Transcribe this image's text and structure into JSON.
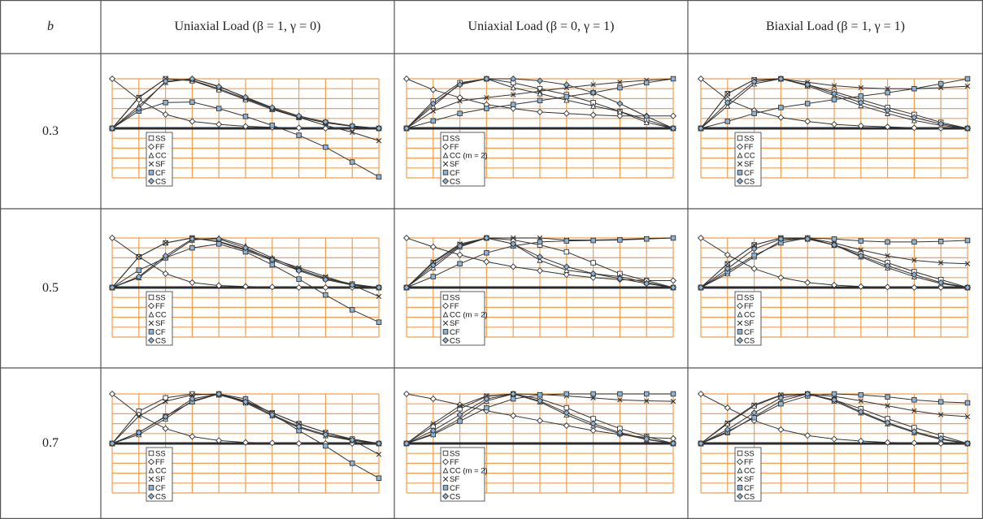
{
  "header": {
    "param_label": "b",
    "columns": [
      "Uniaxial Load (β = 1, γ = 0)",
      "Uniaxial Load (β = 0, γ = 1)",
      "Biaxial Load (β = 1, γ = 1)"
    ]
  },
  "rows": [
    {
      "label": "0.3"
    },
    {
      "label": "0.5"
    },
    {
      "label": "0.7"
    }
  ],
  "colors": {
    "grid": "#f0a050",
    "axis": "#2b2b2b",
    "line": "#333333",
    "marker_fill_dark": "#8fb4d3",
    "marker_fill_light": "#ffffff",
    "border": "#555555"
  },
  "chart_data": [
    {
      "type": "line",
      "row": "0.3",
      "column": "Uniaxial Load (β = 1, γ = 0)",
      "x": [
        0,
        1,
        2,
        3,
        4,
        5,
        6,
        7,
        8,
        9,
        10
      ],
      "ylim": [
        -1,
        1
      ],
      "legend": [
        "SS",
        "FF",
        "CC",
        "SF",
        "CF",
        "CS"
      ],
      "series": [
        {
          "name": "SS",
          "values": [
            0,
            0.62,
            1.0,
            0.96,
            0.78,
            0.58,
            0.38,
            0.22,
            0.12,
            0.04,
            0
          ]
        },
        {
          "name": "FF",
          "values": [
            1.0,
            0.58,
            0.28,
            0.14,
            0.08,
            0.04,
            0.02,
            0.01,
            0.0,
            0.0,
            0.0
          ]
        },
        {
          "name": "CC",
          "values": [
            0,
            0.45,
            0.93,
            1.0,
            0.85,
            0.62,
            0.4,
            0.23,
            0.11,
            0.04,
            0
          ]
        },
        {
          "name": "SF",
          "values": [
            0,
            0.63,
            1.0,
            0.97,
            0.8,
            0.6,
            0.4,
            0.22,
            0.06,
            -0.08,
            -0.25
          ]
        },
        {
          "name": "CF",
          "values": [
            0,
            0.35,
            0.52,
            0.53,
            0.4,
            0.24,
            0.06,
            -0.14,
            -0.38,
            -0.68,
            -0.98
          ]
        },
        {
          "name": "CS",
          "values": [
            0,
            0.4,
            0.95,
            1.0,
            0.84,
            0.63,
            0.42,
            0.25,
            0.13,
            0.05,
            0
          ]
        }
      ]
    },
    {
      "type": "line",
      "row": "0.3",
      "column": "Uniaxial Load (β = 0, γ = 1)",
      "x": [
        0,
        1,
        2,
        3,
        4,
        5,
        6,
        7,
        8,
        9,
        10
      ],
      "ylim": [
        -1,
        1
      ],
      "legend": [
        "SS",
        "FF",
        "CC (m = 2)",
        "SF",
        "CF",
        "CS"
      ],
      "series": [
        {
          "name": "SS",
          "values": [
            0,
            0.55,
            0.92,
            1.0,
            0.92,
            0.8,
            0.68,
            0.52,
            0.34,
            0.17,
            0
          ]
        },
        {
          "name": "FF",
          "values": [
            1.0,
            0.78,
            0.62,
            0.48,
            0.4,
            0.33,
            0.3,
            0.27,
            0.25,
            0.25,
            0.25
          ]
        },
        {
          "name": "CC (m = 2)",
          "values": [
            0,
            0.45,
            0.9,
            1.0,
            0.82,
            0.7,
            0.57,
            0.45,
            0.34,
            0.12,
            0
          ]
        },
        {
          "name": "SF",
          "values": [
            0,
            0.35,
            0.55,
            0.62,
            0.68,
            0.75,
            0.82,
            0.88,
            0.93,
            0.97,
            1.0
          ]
        },
        {
          "name": "CF",
          "values": [
            0,
            0.15,
            0.3,
            0.4,
            0.48,
            0.56,
            0.64,
            0.72,
            0.82,
            0.92,
            1.0
          ]
        },
        {
          "name": "CS",
          "values": [
            0,
            0.5,
            0.88,
            1.0,
            1.0,
            0.96,
            0.88,
            0.72,
            0.5,
            0.24,
            0
          ]
        }
      ]
    },
    {
      "type": "line",
      "row": "0.3",
      "column": "Biaxial Load (β = 1, γ = 1)",
      "x": [
        0,
        1,
        2,
        3,
        4,
        5,
        6,
        7,
        8,
        9,
        10
      ],
      "ylim": [
        -1,
        1
      ],
      "legend": [
        "SS",
        "FF",
        "CC",
        "SF",
        "CF",
        "CS"
      ],
      "series": [
        {
          "name": "SS",
          "values": [
            0,
            0.7,
            0.98,
            1.0,
            0.88,
            0.74,
            0.58,
            0.42,
            0.28,
            0.12,
            0
          ]
        },
        {
          "name": "FF",
          "values": [
            1.0,
            0.58,
            0.36,
            0.22,
            0.14,
            0.08,
            0.05,
            0.03,
            0.01,
            0.0,
            0.0
          ]
        },
        {
          "name": "CC",
          "values": [
            0,
            0.45,
            0.9,
            1.0,
            0.86,
            0.66,
            0.46,
            0.3,
            0.16,
            0.06,
            0
          ]
        },
        {
          "name": "SF",
          "values": [
            0,
            0.7,
            0.98,
            1.0,
            0.93,
            0.86,
            0.82,
            0.8,
            0.8,
            0.82,
            0.85
          ]
        },
        {
          "name": "CF",
          "values": [
            0,
            0.14,
            0.3,
            0.42,
            0.5,
            0.58,
            0.65,
            0.72,
            0.8,
            0.9,
            1.0
          ]
        },
        {
          "name": "CS",
          "values": [
            0,
            0.52,
            0.94,
            1.0,
            0.88,
            0.7,
            0.52,
            0.36,
            0.22,
            0.09,
            0
          ]
        }
      ]
    },
    {
      "type": "line",
      "row": "0.5",
      "column": "Uniaxial Load (β = 1, γ = 0)",
      "x": [
        0,
        1,
        2,
        3,
        4,
        5,
        6,
        7,
        8,
        9,
        10
      ],
      "ylim": [
        -1,
        1
      ],
      "legend": [
        "SS",
        "FF",
        "CC",
        "SF",
        "CF",
        "CS"
      ],
      "series": [
        {
          "name": "SS",
          "values": [
            0,
            0.62,
            0.9,
            1.0,
            0.92,
            0.75,
            0.55,
            0.36,
            0.19,
            0.07,
            0
          ]
        },
        {
          "name": "FF",
          "values": [
            1.0,
            0.62,
            0.28,
            0.1,
            0.04,
            0.02,
            0.01,
            0.0,
            0.0,
            0.0,
            0.0
          ]
        },
        {
          "name": "CC",
          "values": [
            0,
            0.2,
            0.6,
            0.96,
            1.0,
            0.84,
            0.6,
            0.37,
            0.18,
            0.06,
            0
          ]
        },
        {
          "name": "SF",
          "values": [
            0,
            0.62,
            0.9,
            1.0,
            0.93,
            0.77,
            0.58,
            0.4,
            0.22,
            0.05,
            -0.18
          ]
        },
        {
          "name": "CF",
          "values": [
            0,
            0.35,
            0.6,
            0.8,
            0.88,
            0.72,
            0.46,
            0.17,
            -0.15,
            -0.45,
            -0.7
          ]
        },
        {
          "name": "CS",
          "values": [
            0,
            0.22,
            0.64,
            0.98,
            0.98,
            0.8,
            0.56,
            0.34,
            0.16,
            0.05,
            0
          ]
        }
      ]
    },
    {
      "type": "line",
      "row": "0.5",
      "column": "Uniaxial Load (β = 0, γ = 1)",
      "x": [
        0,
        1,
        2,
        3,
        4,
        5,
        6,
        7,
        8,
        9,
        10
      ],
      "ylim": [
        -1,
        1
      ],
      "legend": [
        "SS",
        "FF",
        "CC (m = 2)",
        "SF",
        "CF",
        "CS"
      ],
      "series": [
        {
          "name": "SS",
          "values": [
            0,
            0.5,
            0.86,
            1.0,
            0.96,
            0.86,
            0.72,
            0.5,
            0.28,
            0.14,
            0
          ]
        },
        {
          "name": "FF",
          "values": [
            1.0,
            0.82,
            0.66,
            0.52,
            0.42,
            0.34,
            0.26,
            0.2,
            0.16,
            0.14,
            0.14
          ]
        },
        {
          "name": "CC (m = 2)",
          "values": [
            0,
            0.4,
            0.82,
            1.0,
            0.88,
            0.55,
            0.35,
            0.28,
            0.22,
            0.1,
            0
          ]
        },
        {
          "name": "SF",
          "values": [
            0,
            0.52,
            0.88,
            1.0,
            1.0,
            1.0,
            0.96,
            0.96,
            0.97,
            0.99,
            1.0
          ]
        },
        {
          "name": "CF",
          "values": [
            0,
            0.22,
            0.48,
            0.7,
            0.84,
            0.92,
            0.94,
            0.95,
            0.96,
            0.98,
            1.0
          ]
        },
        {
          "name": "CS",
          "values": [
            0,
            0.45,
            0.84,
            1.0,
            0.88,
            0.62,
            0.42,
            0.28,
            0.18,
            0.08,
            0
          ]
        }
      ]
    },
    {
      "type": "line",
      "row": "0.5",
      "column": "Biaxial Load (β = 1, γ = 1)",
      "x": [
        0,
        1,
        2,
        3,
        4,
        5,
        6,
        7,
        8,
        9,
        10
      ],
      "ylim": [
        -1,
        1
      ],
      "legend": [
        "SS",
        "FF",
        "CC",
        "SF",
        "CF",
        "CS"
      ],
      "series": [
        {
          "name": "SS",
          "values": [
            0,
            0.48,
            0.86,
            1.0,
            0.98,
            0.86,
            0.68,
            0.5,
            0.32,
            0.16,
            0
          ]
        },
        {
          "name": "FF",
          "values": [
            1.0,
            0.66,
            0.38,
            0.2,
            0.1,
            0.05,
            0.02,
            0.01,
            0.0,
            0.0,
            0.0
          ]
        },
        {
          "name": "CC",
          "values": [
            0,
            0.28,
            0.62,
            0.94,
            1.0,
            0.86,
            0.62,
            0.4,
            0.22,
            0.08,
            0
          ]
        },
        {
          "name": "SF",
          "values": [
            0,
            0.48,
            0.86,
            1.0,
            1.0,
            0.9,
            0.76,
            0.64,
            0.55,
            0.5,
            0.48
          ]
        },
        {
          "name": "CF",
          "values": [
            0,
            0.32,
            0.65,
            0.9,
            1.0,
            0.98,
            0.94,
            0.92,
            0.92,
            0.93,
            0.95
          ]
        },
        {
          "name": "CS",
          "values": [
            0,
            0.38,
            0.78,
            0.98,
            0.98,
            0.86,
            0.64,
            0.44,
            0.26,
            0.1,
            0
          ]
        }
      ]
    },
    {
      "type": "line",
      "row": "0.7",
      "column": "Uniaxial Load (β = 1, γ = 0)",
      "x": [
        0,
        1,
        2,
        3,
        4,
        5,
        6,
        7,
        8,
        9,
        10
      ],
      "ylim": [
        -1,
        1
      ],
      "legend": [
        "SS",
        "FF",
        "CC",
        "SF",
        "CF",
        "CS"
      ],
      "series": [
        {
          "name": "SS",
          "values": [
            0,
            0.65,
            0.92,
            1.0,
            0.98,
            0.84,
            0.62,
            0.4,
            0.22,
            0.09,
            0
          ]
        },
        {
          "name": "FF",
          "values": [
            1.0,
            0.58,
            0.3,
            0.14,
            0.06,
            0.02,
            0.01,
            0.0,
            0.0,
            0.0,
            0.0
          ]
        },
        {
          "name": "CC",
          "values": [
            0,
            0.18,
            0.5,
            0.86,
            1.0,
            0.82,
            0.56,
            0.32,
            0.16,
            0.06,
            0
          ]
        },
        {
          "name": "SF",
          "values": [
            0,
            0.55,
            0.85,
            0.98,
            1.0,
            0.86,
            0.62,
            0.4,
            0.22,
            0.07,
            -0.22
          ]
        },
        {
          "name": "CF",
          "values": [
            0,
            0.22,
            0.55,
            0.84,
            1.0,
            0.9,
            0.6,
            0.26,
            -0.05,
            -0.4,
            -0.7
          ]
        },
        {
          "name": "CS",
          "values": [
            0,
            0.22,
            0.54,
            0.9,
            1.0,
            0.84,
            0.58,
            0.34,
            0.18,
            0.07,
            0
          ]
        }
      ]
    },
    {
      "type": "line",
      "row": "0.7",
      "column": "Uniaxial Load (β = 0, γ = 1)",
      "x": [
        0,
        1,
        2,
        3,
        4,
        5,
        6,
        7,
        8,
        9,
        10
      ],
      "ylim": [
        -1,
        1
      ],
      "legend": [
        "SS",
        "FF",
        "CC (m = 2)",
        "SF",
        "CF",
        "CS"
      ],
      "series": [
        {
          "name": "SS",
          "values": [
            0,
            0.35,
            0.7,
            0.95,
            1.0,
            0.9,
            0.72,
            0.5,
            0.3,
            0.14,
            0
          ]
        },
        {
          "name": "FF",
          "values": [
            1.0,
            0.9,
            0.78,
            0.66,
            0.56,
            0.46,
            0.36,
            0.26,
            0.18,
            0.12,
            0.1
          ]
        },
        {
          "name": "CC (m = 2)",
          "values": [
            0,
            0.2,
            0.5,
            0.86,
            1.0,
            0.84,
            0.58,
            0.36,
            0.2,
            0.08,
            0
          ]
        },
        {
          "name": "SF",
          "values": [
            0,
            0.4,
            0.76,
            0.96,
            1.0,
            0.99,
            0.96,
            0.92,
            0.88,
            0.86,
            0.85
          ]
        },
        {
          "name": "CF",
          "values": [
            0,
            0.18,
            0.45,
            0.72,
            0.9,
            0.98,
            1.0,
            1.0,
            1.0,
            1.0,
            1.0
          ]
        },
        {
          "name": "CS",
          "values": [
            0,
            0.26,
            0.58,
            0.9,
            1.0,
            0.86,
            0.62,
            0.4,
            0.22,
            0.09,
            0
          ]
        }
      ]
    },
    {
      "type": "line",
      "row": "0.7",
      "column": "Biaxial Load (β = 1, γ = 1)",
      "x": [
        0,
        1,
        2,
        3,
        4,
        5,
        6,
        7,
        8,
        9,
        10
      ],
      "ylim": [
        -1,
        1
      ],
      "legend": [
        "SS",
        "FF",
        "CC",
        "SF",
        "CF",
        "CS"
      ],
      "series": [
        {
          "name": "SS",
          "values": [
            0,
            0.4,
            0.76,
            0.97,
            1.0,
            0.88,
            0.7,
            0.5,
            0.32,
            0.16,
            0
          ]
        },
        {
          "name": "FF",
          "values": [
            1.0,
            0.72,
            0.46,
            0.28,
            0.16,
            0.09,
            0.05,
            0.02,
            0.01,
            0.0,
            0.0
          ]
        },
        {
          "name": "CC",
          "values": [
            0,
            0.22,
            0.54,
            0.86,
            1.0,
            0.86,
            0.62,
            0.4,
            0.22,
            0.08,
            0
          ]
        },
        {
          "name": "SF",
          "values": [
            0,
            0.42,
            0.78,
            0.98,
            1.0,
            0.95,
            0.86,
            0.76,
            0.66,
            0.58,
            0.54
          ]
        },
        {
          "name": "CF",
          "values": [
            0,
            0.24,
            0.52,
            0.8,
            0.96,
            1.0,
            0.98,
            0.94,
            0.88,
            0.84,
            0.82
          ]
        },
        {
          "name": "CS",
          "values": [
            0,
            0.28,
            0.62,
            0.92,
            1.0,
            0.88,
            0.64,
            0.42,
            0.24,
            0.1,
            0
          ]
        }
      ]
    }
  ]
}
